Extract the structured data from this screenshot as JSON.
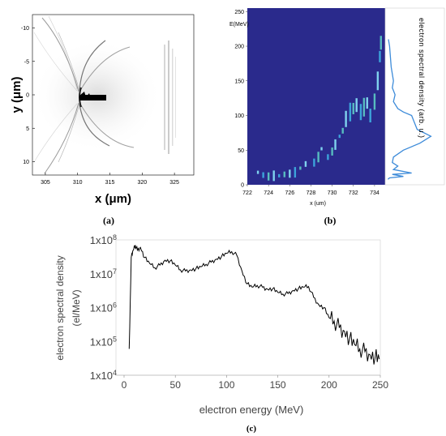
{
  "panels": {
    "a": {
      "caption": "(a)",
      "xlabel": "x (μm)",
      "ylabel": "y (μm)",
      "x_ticks": [
        "305",
        "310",
        "315",
        "320",
        "325"
      ],
      "y_ticks": [
        "-10",
        "-5",
        "0",
        "5",
        "10"
      ]
    },
    "b": {
      "caption": "(b)",
      "xlabel": "x (um)",
      "ylabel": "E(MeV)",
      "side_label": "electron spectral density (arb. u.)",
      "x_ticks": [
        "722",
        "724",
        "726",
        "728",
        "730",
        "732",
        "734"
      ],
      "y_ticks": [
        "0",
        "50",
        "100",
        "150",
        "200",
        "250"
      ]
    },
    "c": {
      "caption": "(c)"
    }
  },
  "chart_data": [
    {
      "type": "heatmap",
      "panel": "a",
      "xlabel": "x (μm)",
      "ylabel": "y (μm)",
      "xlim": [
        303,
        328
      ],
      "ylim": [
        -12,
        12
      ],
      "colormap": "grayscale (white background)"
    },
    {
      "type": "heatmap",
      "panel": "b",
      "xlabel": "x (um)",
      "ylabel": "E(MeV)",
      "xlim": [
        722,
        735
      ],
      "ylim": [
        0,
        255
      ],
      "colormap": "parula (dark blue background)",
      "spectrum_x": [
        0.02,
        0.05,
        0.3,
        0.1,
        0.45,
        0.12,
        0.2,
        0.1,
        0.12,
        0.3,
        0.6,
        0.8,
        0.55,
        0.5,
        0.45,
        0.3,
        0.2,
        0.12,
        0.15,
        0.1,
        0.12,
        0.08,
        0.05,
        0.03
      ],
      "spectrum_E": [
        8,
        10,
        12,
        15,
        17,
        22,
        27,
        32,
        40,
        50,
        60,
        70,
        80,
        90,
        100,
        105,
        110,
        120,
        130,
        140,
        150,
        170,
        200,
        210
      ]
    },
    {
      "type": "line",
      "panel": "c",
      "title": "",
      "xlabel": "electron energy (MeV)",
      "ylabel": "electron spectral density (el/MeV)",
      "xlim": [
        0,
        250
      ],
      "ylim": [
        10000,
        100000000
      ],
      "yscale": "log",
      "x_ticks": [
        "0",
        "50",
        "100",
        "150",
        "200",
        "250"
      ],
      "y_ticks": [
        "1x10^4",
        "1x10^5",
        "1x10^6",
        "1x10^7",
        "1x10^8"
      ],
      "x": [
        5,
        7,
        9,
        11,
        13,
        16,
        20,
        25,
        30,
        35,
        40,
        45,
        50,
        55,
        60,
        65,
        70,
        75,
        80,
        85,
        90,
        95,
        100,
        105,
        110,
        115,
        120,
        125,
        130,
        135,
        140,
        145,
        150,
        155,
        160,
        165,
        170,
        175,
        180,
        185,
        190,
        195,
        200,
        205,
        210,
        215,
        220,
        225,
        230,
        235,
        240,
        245,
        249
      ],
      "y": [
        60000.0,
        30000000.0,
        50000000.0,
        70000000.0,
        50000000.0,
        60000000.0,
        30000000.0,
        20000000.0,
        15000000.0,
        18000000.0,
        25000000.0,
        24000000.0,
        18000000.0,
        13000000.0,
        12000000.0,
        13000000.0,
        14000000.0,
        16000000.0,
        19000000.0,
        22000000.0,
        27000000.0,
        32000000.0,
        40000000.0,
        45000000.0,
        35000000.0,
        12000000.0,
        5000000.0,
        4000000.0,
        4500000.0,
        4000000.0,
        3500000.0,
        3600000.0,
        2800000.0,
        2500000.0,
        2600000.0,
        3200000.0,
        3600000.0,
        4000000.0,
        4200000.0,
        2000000.0,
        1200000.0,
        1000000.0,
        500000.0,
        400000.0,
        250000.0,
        200000.0,
        120000.0,
        80000.0,
        60000.0,
        50000.0,
        40000.0,
        35000.0,
        30000.0
      ]
    }
  ]
}
